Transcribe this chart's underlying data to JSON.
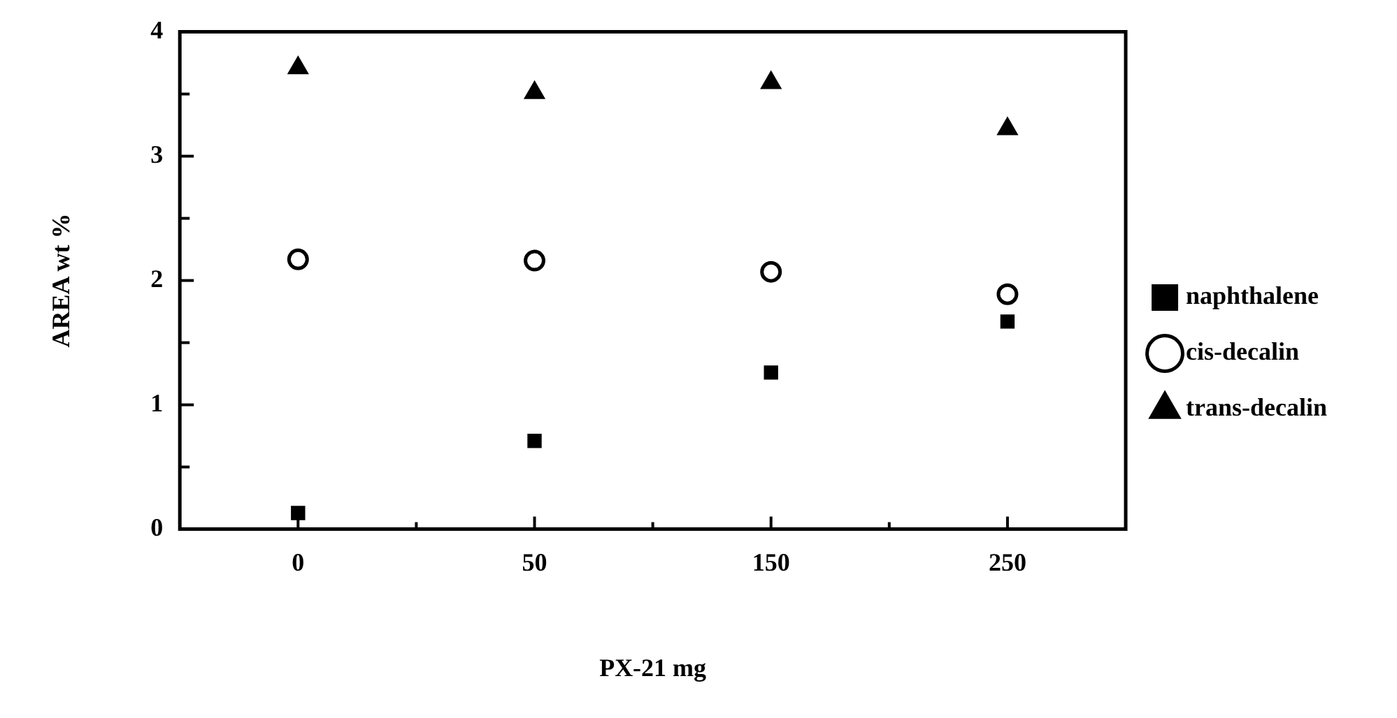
{
  "chart_data": {
    "type": "scatter",
    "xlabel": "PX-21 mg",
    "ylabel": "AREA wt %",
    "categories": [
      "0",
      "50",
      "150",
      "250"
    ],
    "series": [
      {
        "name": "naphthalene",
        "color": "#000000",
        "marker": "square",
        "values": [
          0.13,
          0.71,
          1.26,
          1.67
        ]
      },
      {
        "name": "cis-decalin",
        "color": "#000000",
        "marker": "circle",
        "values": [
          2.17,
          2.16,
          2.07,
          1.89
        ]
      },
      {
        "name": "trans-decalin",
        "color": "#000000",
        "marker": "triangle",
        "values": [
          3.71,
          3.51,
          3.59,
          3.22
        ]
      }
    ],
    "ylim": [
      0,
      4
    ],
    "yticks": [
      0,
      {
        "value": 0.5,
        "label": null
      },
      1,
      {
        "value": 1.5,
        "label": null
      },
      2,
      {
        "value": 2.5,
        "label": null
      },
      3,
      {
        "value": 3.5,
        "label": null
      },
      4
    ],
    "grid": false,
    "legend": "right"
  }
}
